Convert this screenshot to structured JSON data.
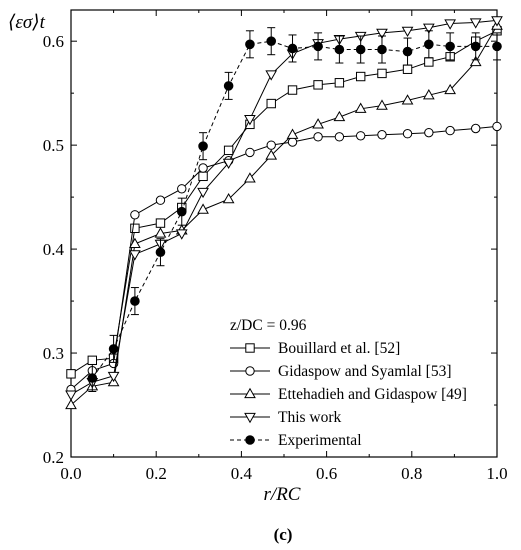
{
  "panel_label": "(c)",
  "chart_data": {
    "type": "line",
    "ylabel": "⟨εσ⟩t",
    "xlabel": "r/RC",
    "xlim": [
      0.0,
      1.0
    ],
    "ylim": [
      0.2,
      0.63
    ],
    "xticks": [
      "0.0",
      "0.2",
      "0.4",
      "0.6",
      "0.8",
      "1.0"
    ],
    "yticks": [
      "0.2",
      "0.3",
      "0.4",
      "0.5",
      "0.6"
    ],
    "legend_title": "z/DC = 0.96",
    "legend_position": "bottom-right",
    "series": [
      {
        "name": "Bouillard et al. [52]",
        "marker": "square",
        "dashed": false,
        "x": [
          0.0,
          0.05,
          0.1,
          0.15,
          0.21,
          0.26,
          0.31,
          0.37,
          0.42,
          0.47,
          0.52,
          0.58,
          0.63,
          0.68,
          0.73,
          0.79,
          0.84,
          0.89,
          0.95,
          1.0
        ],
        "y": [
          0.28,
          0.293,
          0.295,
          0.42,
          0.425,
          0.44,
          0.47,
          0.495,
          0.52,
          0.54,
          0.553,
          0.558,
          0.56,
          0.566,
          0.569,
          0.573,
          0.58,
          0.585,
          0.6,
          0.61
        ]
      },
      {
        "name": "Gidaspow and Syamlal [53]",
        "marker": "circle",
        "dashed": false,
        "x": [
          0.0,
          0.05,
          0.1,
          0.15,
          0.21,
          0.26,
          0.31,
          0.37,
          0.42,
          0.47,
          0.52,
          0.58,
          0.63,
          0.68,
          0.73,
          0.79,
          0.84,
          0.89,
          0.95,
          1.0
        ],
        "y": [
          0.265,
          0.283,
          0.29,
          0.433,
          0.447,
          0.458,
          0.478,
          0.485,
          0.493,
          0.5,
          0.503,
          0.508,
          0.508,
          0.509,
          0.51,
          0.511,
          0.512,
          0.514,
          0.516,
          0.518
        ]
      },
      {
        "name": "Ettehadieh and Gidaspow [49]",
        "marker": "triangle-up",
        "dashed": false,
        "x": [
          0.0,
          0.05,
          0.1,
          0.15,
          0.21,
          0.26,
          0.31,
          0.37,
          0.42,
          0.47,
          0.52,
          0.58,
          0.63,
          0.68,
          0.73,
          0.79,
          0.84,
          0.89,
          0.95,
          1.0
        ],
        "y": [
          0.25,
          0.268,
          0.272,
          0.405,
          0.415,
          0.418,
          0.438,
          0.448,
          0.468,
          0.49,
          0.51,
          0.52,
          0.527,
          0.535,
          0.538,
          0.543,
          0.548,
          0.553,
          0.58,
          0.615
        ]
      },
      {
        "name": "This work",
        "marker": "triangle-down",
        "dashed": false,
        "x": [
          0.0,
          0.05,
          0.1,
          0.15,
          0.21,
          0.26,
          0.31,
          0.37,
          0.42,
          0.47,
          0.52,
          0.58,
          0.63,
          0.68,
          0.73,
          0.79,
          0.84,
          0.89,
          0.95,
          1.0
        ],
        "y": [
          0.26,
          0.272,
          0.278,
          0.395,
          0.405,
          0.415,
          0.455,
          0.483,
          0.525,
          0.568,
          0.588,
          0.598,
          0.602,
          0.605,
          0.608,
          0.61,
          0.613,
          0.617,
          0.618,
          0.62
        ]
      },
      {
        "name": "Experimental",
        "marker": "filled-circle",
        "dashed": true,
        "x": [
          0.05,
          0.1,
          0.15,
          0.21,
          0.26,
          0.31,
          0.37,
          0.42,
          0.47,
          0.52,
          0.58,
          0.63,
          0.68,
          0.73,
          0.79,
          0.84,
          0.89,
          0.95,
          1.0
        ],
        "y": [
          0.276,
          0.304,
          0.35,
          0.397,
          0.436,
          0.499,
          0.557,
          0.597,
          0.6,
          0.593,
          0.595,
          0.592,
          0.592,
          0.592,
          0.59,
          0.597,
          0.595,
          0.595,
          0.595
        ],
        "error": 0.013
      }
    ]
  }
}
